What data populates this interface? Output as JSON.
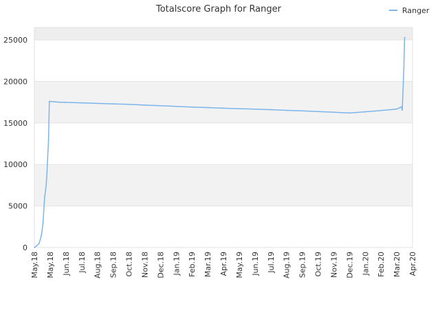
{
  "chart_data": {
    "type": "line",
    "title": "Totalscore Graph for Ranger",
    "xlabel": "",
    "ylabel": "",
    "ylim": [
      0,
      26500
    ],
    "yticks": [
      0,
      5000,
      10000,
      15000,
      20000,
      25000
    ],
    "xticks": [
      "May.18",
      "May.18",
      "Jun.18",
      "Jul.18",
      "Aug.18",
      "Sep.18",
      "Oct.18",
      "Nov.18",
      "Dec.18",
      "Jan.19",
      "Feb.19",
      "Mar.19",
      "Apr.19",
      "May.19",
      "Jun.19",
      "Jul.19",
      "Aug.19",
      "Sep.19",
      "Oct.19",
      "Nov.19",
      "Dec.19",
      "Jan.20",
      "Feb.20",
      "Mar.20",
      "Apr.20"
    ],
    "grid": true,
    "alternating_bands": true,
    "legend_position": "top-right",
    "series": [
      {
        "name": "Ranger",
        "color": "#7cb5ec",
        "x": [
          0,
          0.15,
          0.3,
          0.45,
          0.55,
          0.65,
          0.75,
          0.8,
          0.9,
          0.95,
          1.0,
          1.3,
          1.6,
          1.9,
          2,
          3,
          4,
          5,
          6,
          7,
          8,
          9,
          10,
          11,
          12,
          13,
          14,
          15,
          16,
          17,
          18,
          19,
          20,
          21,
          22,
          23,
          23.2,
          23.3,
          23.35,
          23.45,
          23.5
        ],
        "y": [
          0,
          200,
          500,
          1500,
          3000,
          6000,
          7500,
          9000,
          13000,
          17600,
          17600,
          17550,
          17500,
          17500,
          17480,
          17420,
          17360,
          17300,
          17240,
          17150,
          17080,
          17000,
          16920,
          16850,
          16780,
          16720,
          16660,
          16600,
          16520,
          16460,
          16380,
          16300,
          16200,
          16350,
          16500,
          16680,
          16850,
          16950,
          16550,
          21500,
          25300
        ]
      }
    ]
  }
}
